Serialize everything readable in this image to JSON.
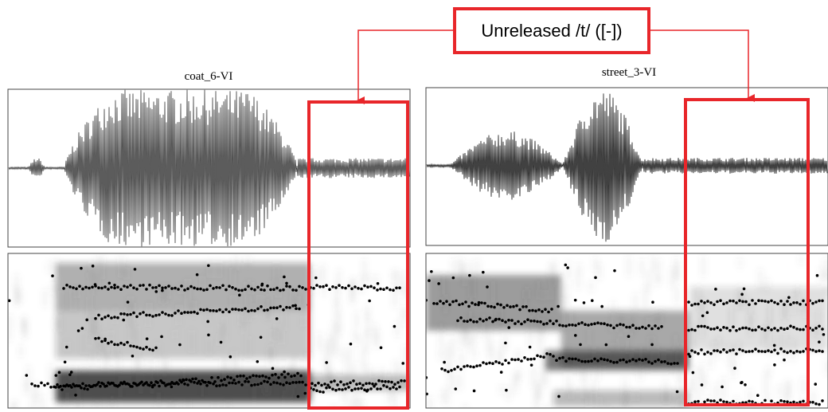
{
  "annotation": "Unreleased /t/ ([-])",
  "panels": [
    {
      "label": "coat_6-VI"
    },
    {
      "label": "street_3-VI"
    }
  ]
}
